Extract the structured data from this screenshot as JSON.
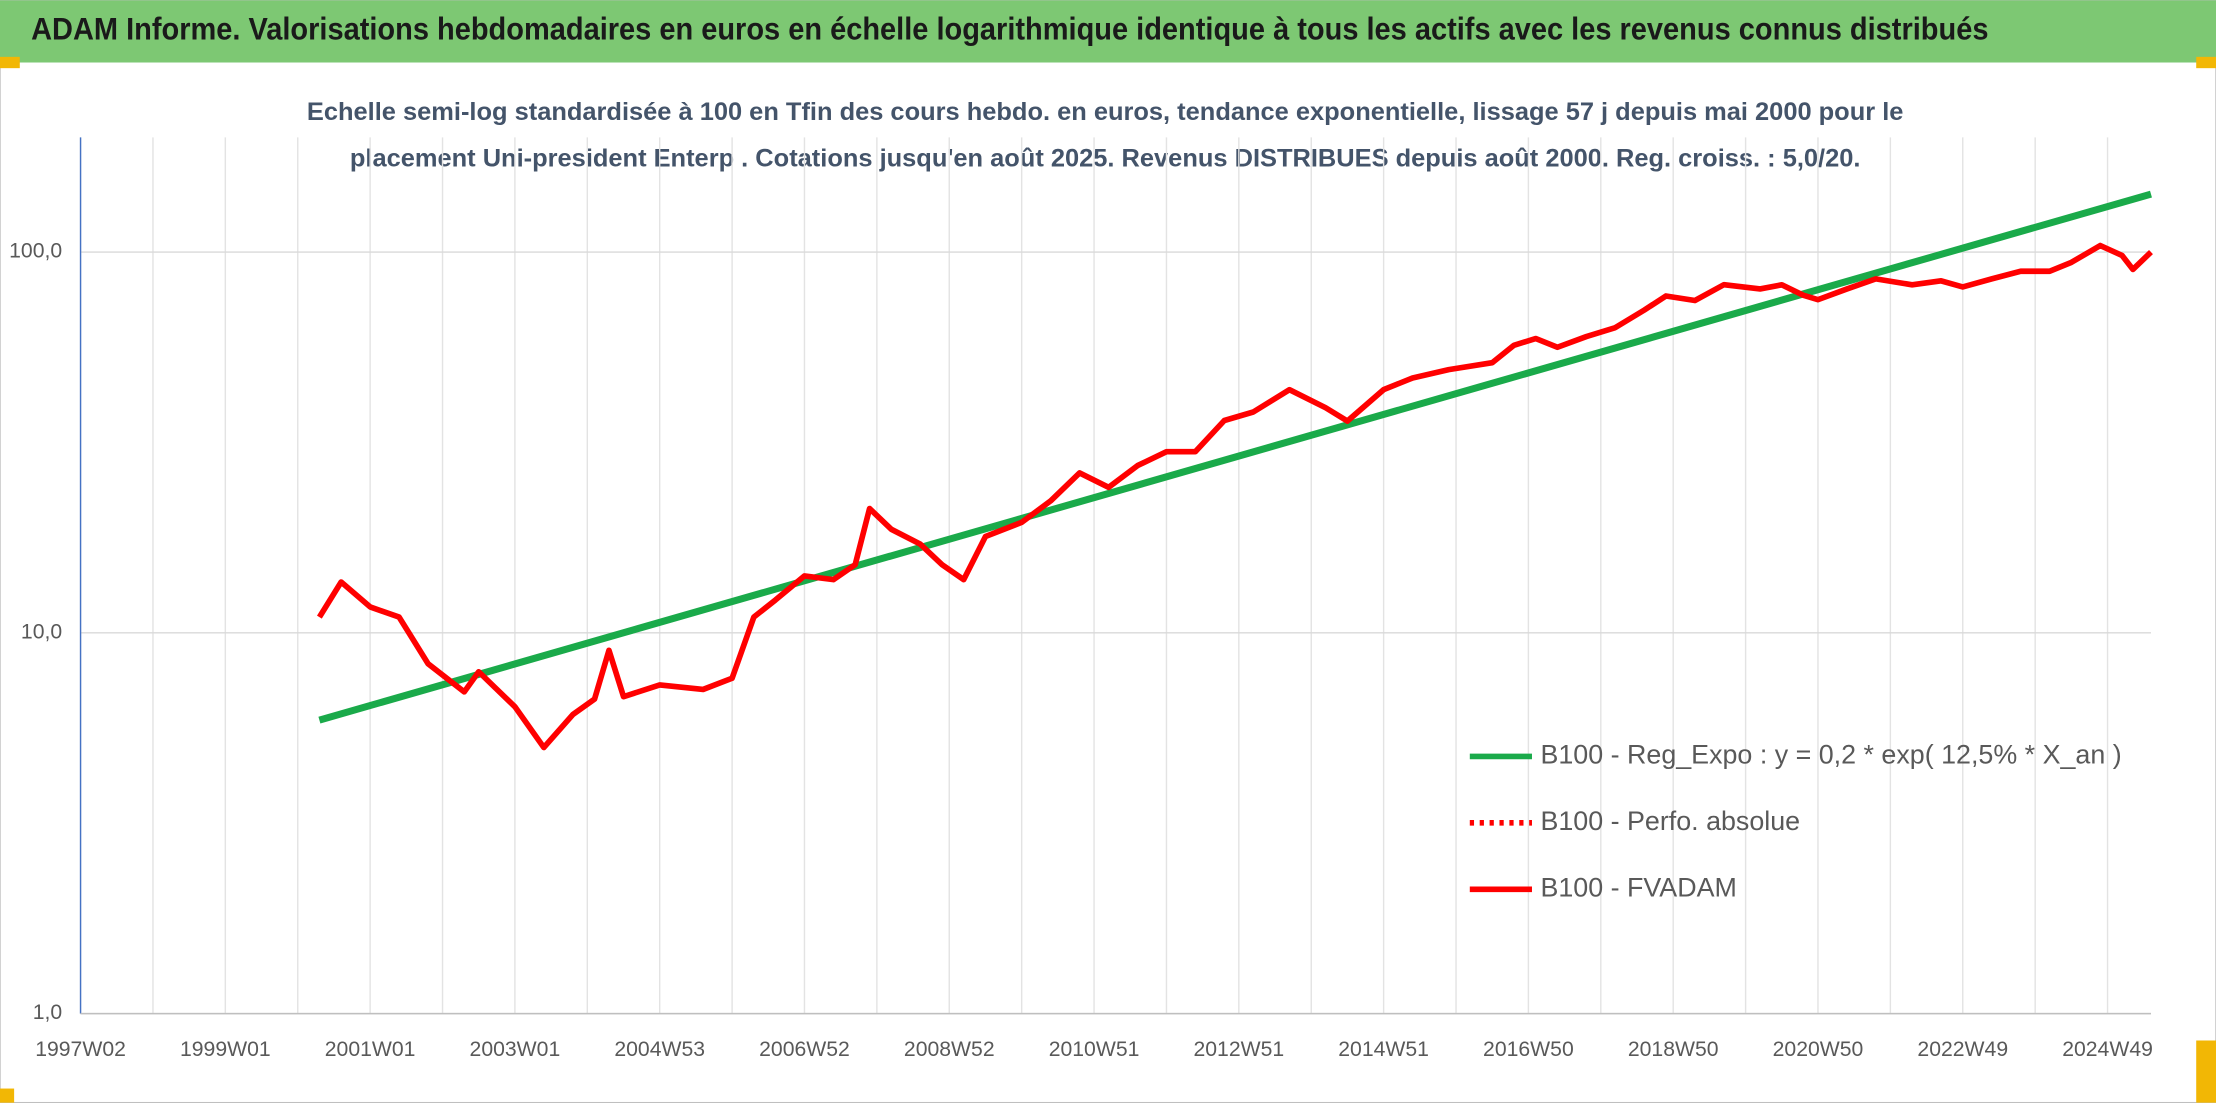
{
  "header": {
    "title": "ADAM Informe. Valorisations hebdomadaires en euros en échelle logarithmique identique à tous les actifs avec les revenus connus distribués"
  },
  "chart_data": {
    "type": "line",
    "subtitle": [
      "Echelle semi-log standardisée à 100 en Tfin des cours hebdo. en euros, tendance exponentielle, lissage 57 j depuis mai 2000 pour le",
      "placement Uni-president Enterp . Cotations jusqu'en août 2025. Revenus DISTRIBUES depuis août 2000. Reg. croiss. : 5,0/20."
    ],
    "log_y": true,
    "ylim": [
      1,
      200
    ],
    "yticks": [
      {
        "value": 1,
        "label": "1,0"
      },
      {
        "value": 10,
        "label": "10,0"
      },
      {
        "value": 100,
        "label": "100,0"
      }
    ],
    "xlim": [
      1997,
      2025.6
    ],
    "xticks": [
      {
        "value": 1997,
        "label": "1997W02"
      },
      {
        "value": 1999,
        "label": "1999W01"
      },
      {
        "value": 2001,
        "label": "2001W01"
      },
      {
        "value": 2003,
        "label": "2003W01"
      },
      {
        "value": 2005,
        "label": "2004W53"
      },
      {
        "value": 2007,
        "label": "2006W52"
      },
      {
        "value": 2009,
        "label": "2008W52"
      },
      {
        "value": 2011,
        "label": "2010W51"
      },
      {
        "value": 2013,
        "label": "2012W51"
      },
      {
        "value": 2015,
        "label": "2014W51"
      },
      {
        "value": 2017,
        "label": "2016W50"
      },
      {
        "value": 2019,
        "label": "2018W50"
      },
      {
        "value": 2021,
        "label": "2020W50"
      },
      {
        "value": 2023,
        "label": "2022W49"
      },
      {
        "value": 2025,
        "label": "2024W49"
      }
    ],
    "xminor": [
      1998,
      2000,
      2002,
      2004,
      2006,
      2008,
      2010,
      2012,
      2014,
      2016,
      2018,
      2020,
      2022,
      2024
    ],
    "grid": true,
    "legend": "right",
    "series": [
      {
        "name": "B100 - Reg_Expo : y = 0,2 * exp( 12,5% *  X_an )",
        "color": "#1aaa4a",
        "style": "solid",
        "x": [
          2000.3,
          2025.6
        ],
        "values": [
          5.9,
          142
        ]
      },
      {
        "name": "B100 - Perfo. absolue",
        "color": "#ff0000",
        "style": "dotted"
      },
      {
        "name": "B100 - FVADAM",
        "color": "#ff0000",
        "style": "solid",
        "x": [
          2000.3,
          2000.6,
          2001.0,
          2001.4,
          2001.8,
          2002.3,
          2002.5,
          2003.0,
          2003.4,
          2003.8,
          2004.1,
          2004.3,
          2004.5,
          2005.0,
          2005.6,
          2006.0,
          2006.3,
          2006.6,
          2007.0,
          2007.4,
          2007.7,
          2007.9,
          2008.2,
          2008.6,
          2008.9,
          2009.2,
          2009.5,
          2010.0,
          2010.4,
          2010.8,
          2011.2,
          2011.6,
          2012.0,
          2012.4,
          2012.8,
          2013.2,
          2013.7,
          2014.2,
          2014.5,
          2015.0,
          2015.4,
          2015.9,
          2016.5,
          2016.8,
          2017.1,
          2017.4,
          2017.8,
          2018.2,
          2018.6,
          2018.9,
          2019.3,
          2019.7,
          2020.2,
          2020.5,
          2020.8,
          2021.0,
          2021.4,
          2021.8,
          2022.3,
          2022.7,
          2023.0,
          2023.4,
          2023.8,
          2024.2,
          2024.5,
          2024.9,
          2025.2,
          2025.35,
          2025.6
        ],
        "values": [
          11.0,
          13.6,
          11.7,
          11.0,
          8.3,
          7.0,
          7.9,
          6.4,
          5.0,
          6.1,
          6.7,
          9.0,
          6.8,
          7.3,
          7.1,
          7.6,
          11.0,
          12.2,
          14.1,
          13.8,
          15.1,
          21.2,
          18.7,
          17.1,
          15.1,
          13.8,
          17.9,
          19.5,
          22.2,
          26.3,
          24.1,
          27.5,
          29.9,
          29.9,
          36.1,
          38.0,
          43.5,
          39.0,
          36.0,
          43.5,
          46.7,
          49.1,
          51.2,
          56.9,
          59.3,
          56.2,
          60.0,
          63.3,
          70.4,
          76.7,
          74.6,
          82.1,
          80.0,
          82.0,
          77.0,
          75.0,
          80.0,
          85.0,
          82.0,
          84.0,
          81.0,
          85.0,
          89.0,
          89.0,
          94.0,
          104.0,
          98.0,
          90.0,
          100.0
        ]
      }
    ]
  }
}
